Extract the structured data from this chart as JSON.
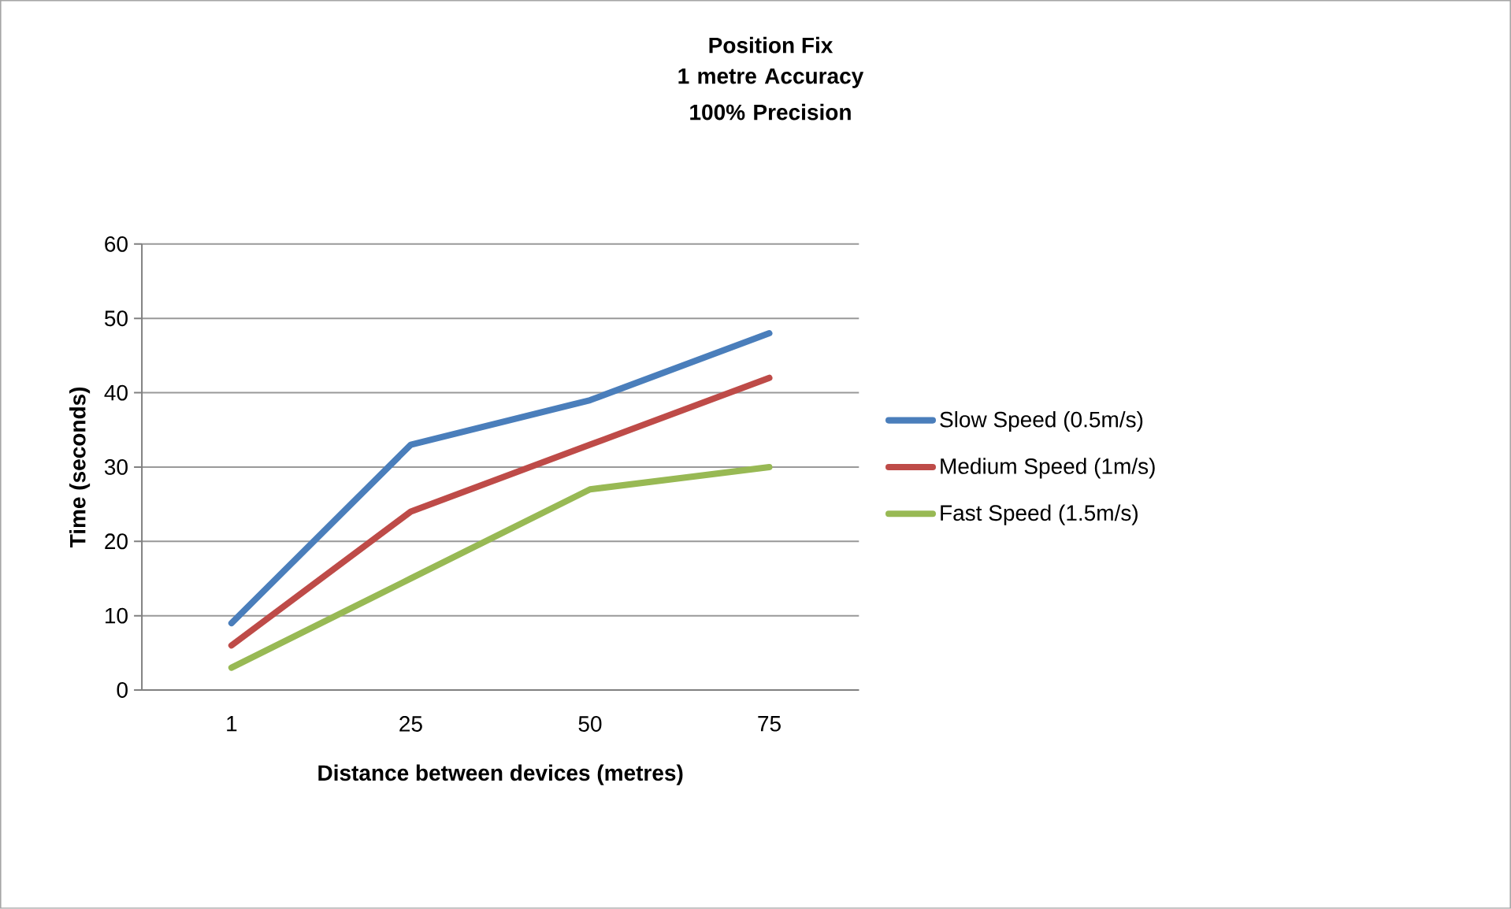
{
  "chart_data": {
    "type": "line",
    "title": "Position Fix",
    "subtitle": "1 metre Accuracy 100% Precision",
    "xlabel": "Distance between devices (metres)",
    "ylabel": "Time (seconds)",
    "categories": [
      "1",
      "25",
      "50",
      "75"
    ],
    "series": [
      {
        "name": "Slow Speed (0.5m/s)",
        "color": "#4a7ebb",
        "values": [
          9,
          33,
          39,
          48
        ]
      },
      {
        "name": "Medium Speed (1m/s)",
        "color": "#be4b48",
        "values": [
          6,
          24,
          33,
          42
        ]
      },
      {
        "name": "Fast Speed (1.5m/s)",
        "color": "#98b954",
        "values": [
          3,
          15,
          27,
          30
        ]
      }
    ],
    "ylim": [
      0,
      60
    ],
    "yticks": [
      0,
      10,
      20,
      30,
      40,
      50,
      60
    ],
    "grid": "y",
    "legend": "right",
    "marker": "none",
    "line_style": "solid"
  }
}
